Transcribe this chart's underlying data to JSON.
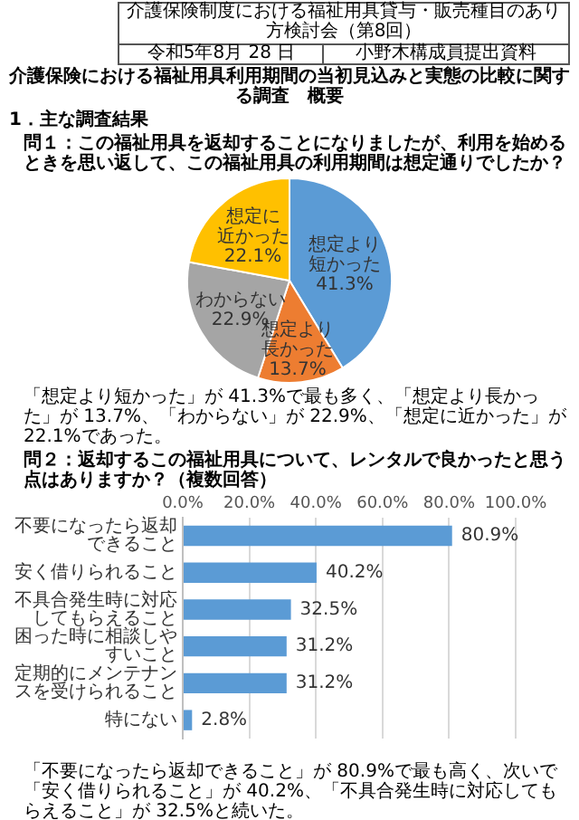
{
  "chart_data": [
    {
      "type": "pie",
      "title": "問１：この福祉用具を返却することになりましたが、利用を始めるときを思い返して、この福祉用具の利用期間は想定通りでしたか？",
      "annotations": [
        "介護保険制度における福祉用具貸与・販売種目のあり方検討会（第8回）",
        "令和5年8月 28 日",
        "小野木構成員提出資料",
        "介護保険における福祉用具利用期間の当初見込みと実態の比較に関する調査　概要",
        "1．主な調査結果",
        "「想定より短かった」が 41.3%で最も多く、「想定より長かった」が 13.7%、「わからない」が 22.9%、「想定に近かった」が 22.1%であった。"
      ],
      "categories": [
        "想定より短かった",
        "想定より長かった",
        "わからない",
        "想定に近かった"
      ],
      "values": [
        41.3,
        13.7,
        22.9,
        22.1
      ],
      "colors": [
        "#5b9bd5",
        "#ed7d31",
        "#a5a5a5",
        "#ffc000"
      ],
      "value_labels": [
        "41.3%",
        "13.7%",
        "22.9%",
        "22.1%"
      ]
    },
    {
      "type": "bar",
      "orientation": "horizontal",
      "title": "問２：返却するこの福祉用具について、レンタルで良かったと思う点はありますか？（複数回答）",
      "annotations": [
        "「不要になったら返却できること」が 80.9%で最も高く、次いで「安く借りられること」が 40.2%、「不具合発生時に対応してもらえること」が 32.5%と続いた。"
      ],
      "categories": [
        "不要になったら返却できること",
        "安く借りられること",
        "不具合発生時に対応してもらえること",
        "困った時に相談しやすいこと",
        "定期的にメンテナンスを受けられること",
        "特にない"
      ],
      "values": [
        80.9,
        40.2,
        32.5,
        31.2,
        31.2,
        2.8
      ],
      "color": "#5b9bd5",
      "value_labels": [
        "80.9%",
        "40.2%",
        "32.5%",
        "31.2%",
        "31.2%",
        "2.8%"
      ],
      "xlim": [
        0,
        100
      ],
      "xticks": [
        {
          "value": 0,
          "label": "0.0%"
        },
        {
          "value": 20,
          "label": "20.0%"
        },
        {
          "value": 40,
          "label": "40.0%"
        },
        {
          "value": 60,
          "label": "60.0%"
        },
        {
          "value": 80,
          "label": "80.0%"
        },
        {
          "value": 100,
          "label": "100.0%"
        }
      ],
      "grid": "x"
    }
  ]
}
